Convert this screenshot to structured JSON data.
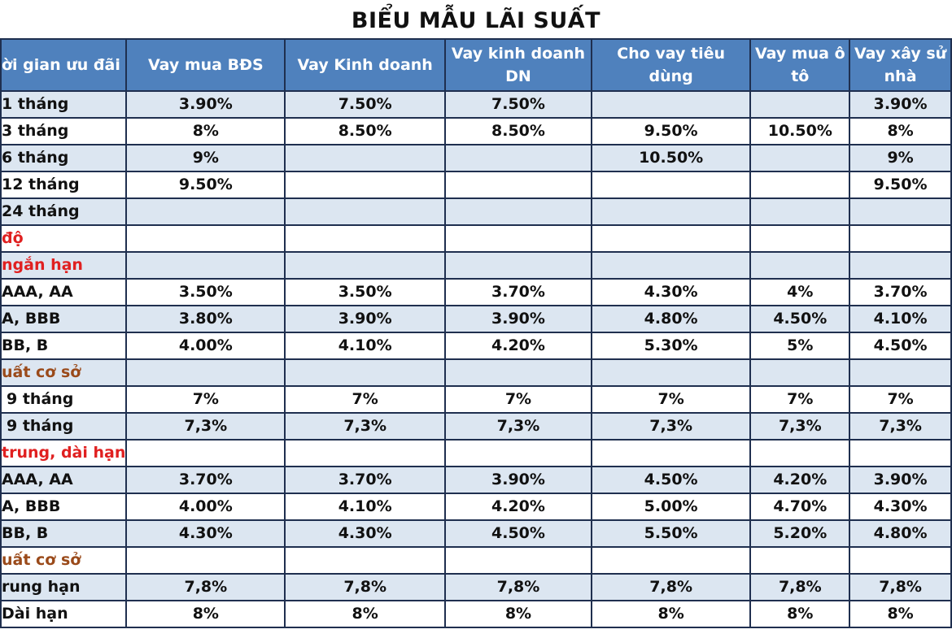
{
  "title": "BIỂU MẪU LÃI SUẤT",
  "colors": {
    "header_bg": "#4f81bd",
    "alt_row_bg": "#dce6f1",
    "border": "#1f2f4f",
    "section_red": "#e02020",
    "section_brown": "#9a4a1a"
  },
  "header": {
    "col0": "ời gian ưu đãi",
    "col1": "Vay mua BĐS",
    "col2": "Vay Kinh doanh",
    "col3": "Vay kinh doanh DN",
    "col4": "Cho vay tiêu dùng",
    "col5": "Vay mua ô tô",
    "col6": "Vay xây sử nhà"
  },
  "rows": [
    {
      "label": "1 tháng",
      "cells": [
        "3.90%",
        "7.50%",
        "7.50%",
        "",
        "",
        "3.90%"
      ]
    },
    {
      "label": "3 tháng",
      "cells": [
        "8%",
        "8.50%",
        "8.50%",
        "9.50%",
        "10.50%",
        "8%"
      ]
    },
    {
      "label": "6 tháng",
      "cells": [
        "9%",
        "",
        "",
        "10.50%",
        "",
        "9%"
      ]
    },
    {
      "label": "12 tháng",
      "cells": [
        "9.50%",
        "",
        "",
        "",
        "",
        "9.50%"
      ]
    },
    {
      "label": "24 tháng",
      "cells": [
        "",
        "",
        "",
        "",
        "",
        ""
      ]
    },
    {
      "label": "độ",
      "cells": [
        "",
        "",
        "",
        "",
        "",
        ""
      ]
    },
    {
      "label": "ngắn hạn",
      "cells": [
        "",
        "",
        "",
        "",
        "",
        ""
      ]
    },
    {
      "label": "AAA, AA",
      "cells": [
        "3.50%",
        "3.50%",
        "3.70%",
        "4.30%",
        "4%",
        "3.70%"
      ]
    },
    {
      "label": "A, BBB",
      "cells": [
        "3.80%",
        "3.90%",
        "3.90%",
        "4.80%",
        "4.50%",
        "4.10%"
      ]
    },
    {
      "label": "BB, B",
      "cells": [
        "4.00%",
        "4.10%",
        "4.20%",
        "5.30%",
        "5%",
        "4.50%"
      ]
    },
    {
      "label": "uất cơ sở",
      "cells": [
        "",
        "",
        "",
        "",
        "",
        ""
      ]
    },
    {
      "label": "9 tháng",
      "cells": [
        "7%",
        "7%",
        "7%",
        "7%",
        "7%",
        "7%"
      ]
    },
    {
      "label": "9 tháng",
      "cells": [
        "7,3%",
        "7,3%",
        "7,3%",
        "7,3%",
        "7,3%",
        "7,3%"
      ]
    },
    {
      "label": "trung, dài hạn",
      "cells": [
        "",
        "",
        "",
        "",
        "",
        ""
      ]
    },
    {
      "label": "AAA, AA",
      "cells": [
        "3.70%",
        "3.70%",
        "3.90%",
        "4.50%",
        "4.20%",
        "3.90%"
      ]
    },
    {
      "label": "A, BBB",
      "cells": [
        "4.00%",
        "4.10%",
        "4.20%",
        "5.00%",
        "4.70%",
        "4.30%"
      ]
    },
    {
      "label": "BB, B",
      "cells": [
        "4.30%",
        "4.30%",
        "4.50%",
        "5.50%",
        "5.20%",
        "4.80%"
      ]
    },
    {
      "label": "uất cơ sở",
      "cells": [
        "",
        "",
        "",
        "",
        "",
        ""
      ]
    },
    {
      "label": "rung hạn",
      "cells": [
        "7,8%",
        "7,8%",
        "7,8%",
        "7,8%",
        "7,8%",
        "7,8%"
      ]
    },
    {
      "label": "Dài hạn",
      "cells": [
        "8%",
        "8%",
        "8%",
        "8%",
        "8%",
        "8%"
      ]
    }
  ]
}
